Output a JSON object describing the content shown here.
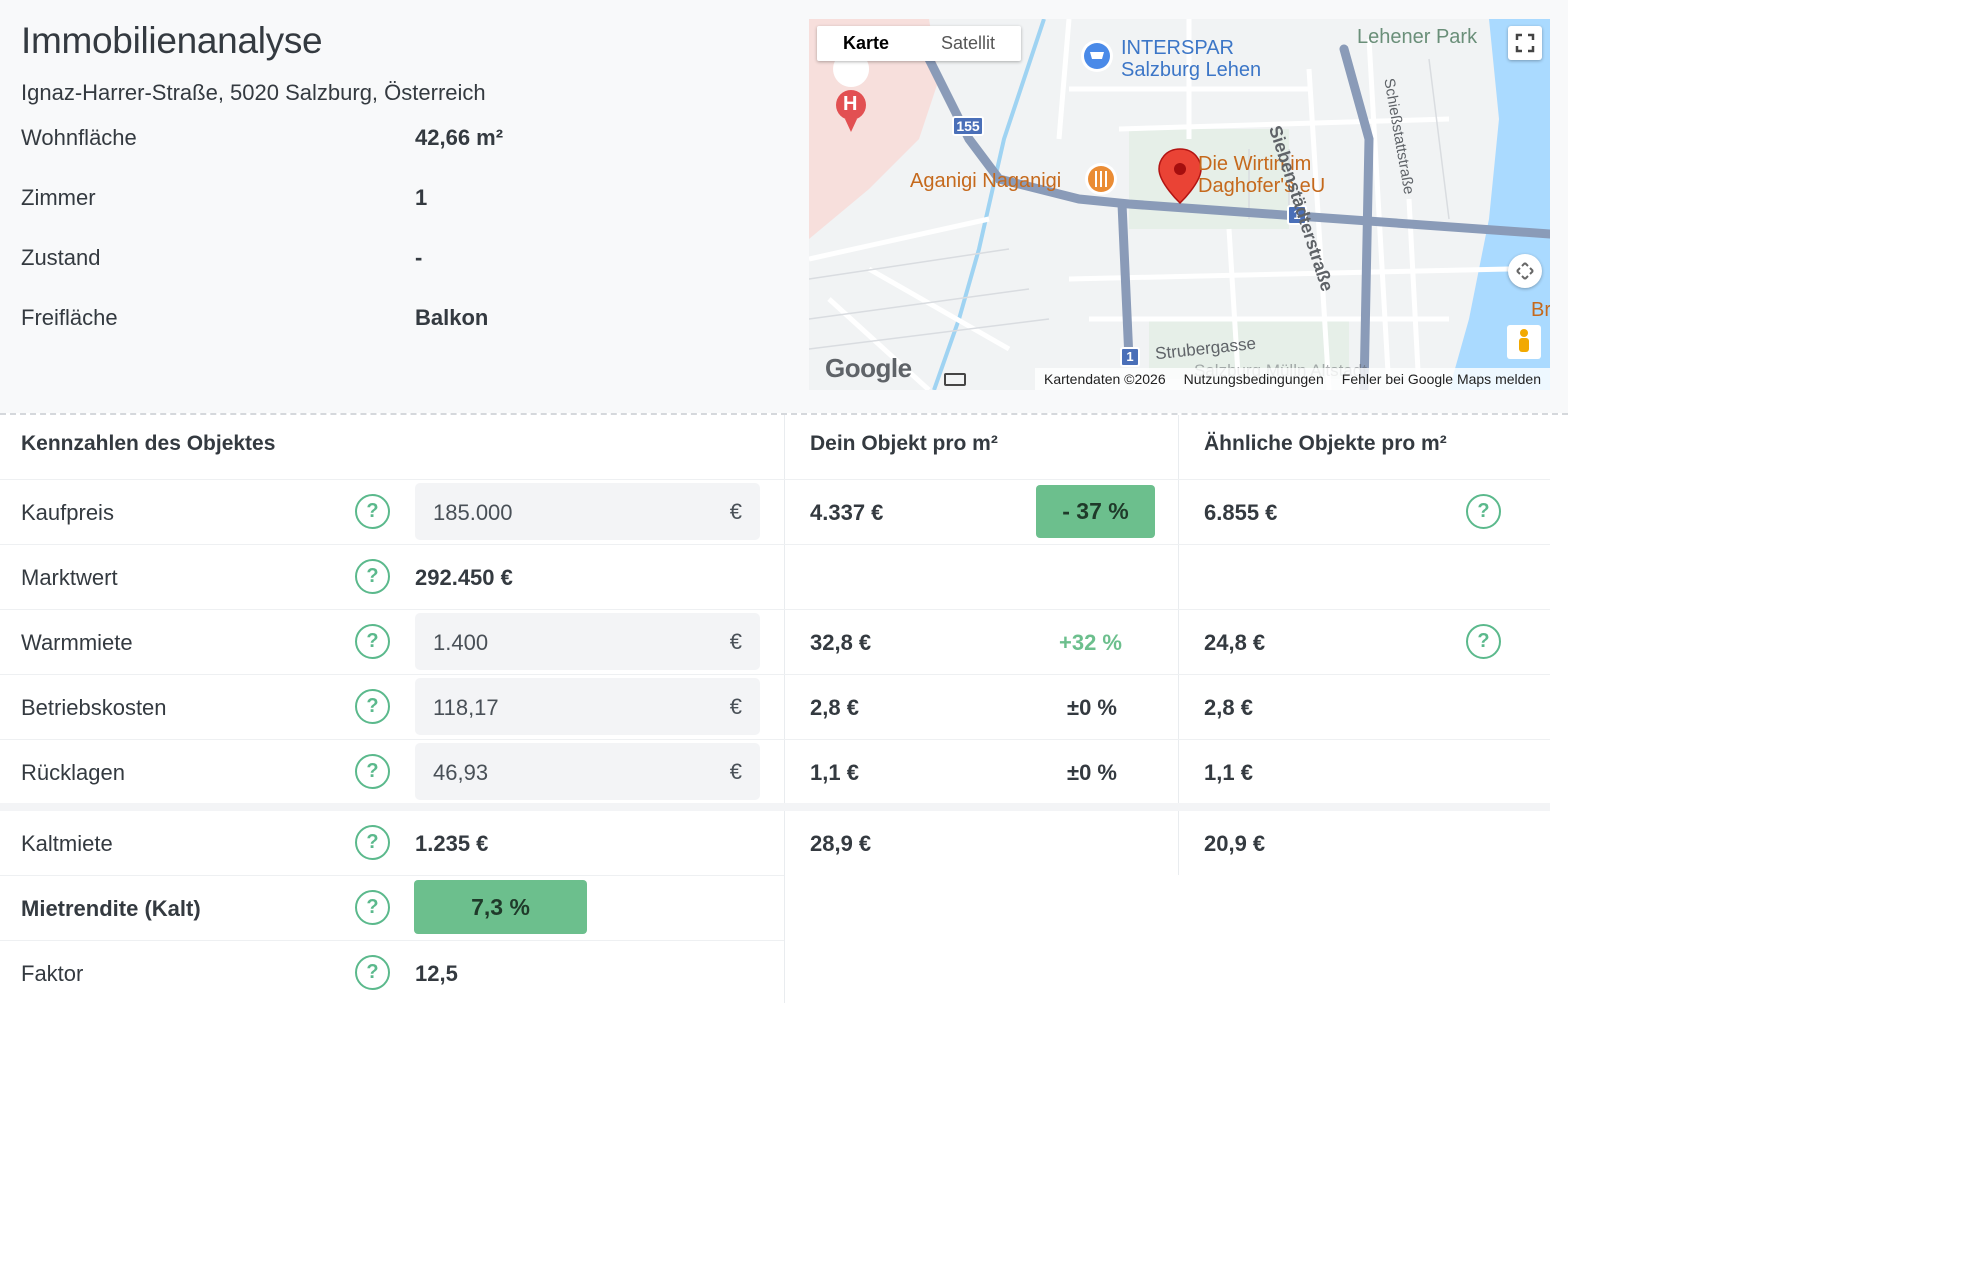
{
  "header": {
    "title": "Immobilienanalyse",
    "address": "Ignaz-Harrer-Straße, 5020 Salzburg, Österreich"
  },
  "properties": [
    {
      "label": "Wohnfläche",
      "value": "42,66 m²"
    },
    {
      "label": "Zimmer",
      "value": "1"
    },
    {
      "label": "Zustand",
      "value": "-"
    },
    {
      "label": "Freifläche",
      "value": "Balkon"
    }
  ],
  "map": {
    "tabs": [
      "Karte",
      "Satellit"
    ],
    "active_tab": "Karte",
    "labels": {
      "interspar": "INTERSPAR",
      "interspar2": "Salzburg Lehen",
      "lehener_park": "Lehener Park",
      "aganigi": "Aganigi Naganigi",
      "wirtin1": "Die Wirtin im",
      "wirtin2": "Daghofer's eU",
      "siebenstaedter": "Siebenstädterstraße",
      "schiessstatt": "Schießstattstraße",
      "strubergasse": "Strubergasse",
      "muelln": "Salzburg Mülln Altstadt",
      "br": "Br",
      "route155": "155",
      "route1a": "1",
      "route1b": "1",
      "hospital": "H"
    },
    "logo": "Google",
    "attribution": {
      "data": "Kartendaten ©2026",
      "terms": "Nutzungsbedingungen",
      "report": "Fehler bei Google Maps melden"
    },
    "colors": {
      "road": "#8a9bb8",
      "water": "#aadaff",
      "park": "#e2efe6",
      "pin": "#ea4335"
    }
  },
  "table": {
    "headers": {
      "col1": "Kennzahlen des Objektes",
      "col2": "Dein Objekt pro m²",
      "col3": "Ähnliche Objekte pro m²"
    },
    "help_glyph": "?",
    "rows": {
      "kaufpreis": {
        "label": "Kaufpreis",
        "input": "185.000",
        "unit": "€",
        "per_m2": "4.337 €",
        "diff": "- 37 %",
        "similar": "6.855 €"
      },
      "marktwert": {
        "label": "Marktwert",
        "value": "292.450 €"
      },
      "warmmiete": {
        "label": "Warmmiete",
        "input": "1.400",
        "unit": "€",
        "per_m2": "32,8 €",
        "diff": "+32 %",
        "similar": "24,8 €"
      },
      "betriebskosten": {
        "label": "Betriebskosten",
        "input": "118,17",
        "unit": "€",
        "per_m2": "2,8 €",
        "diff": "±0 %",
        "similar": "2,8 €"
      },
      "ruecklagen": {
        "label": "Rücklagen",
        "input": "46,93",
        "unit": "€",
        "per_m2": "1,1 €",
        "diff": "±0 %",
        "similar": "1,1 €"
      },
      "kaltmiete": {
        "label": "Kaltmiete",
        "value": "1.235 €",
        "per_m2": "28,9 €",
        "similar": "20,9 €"
      },
      "mietrendite": {
        "label": "Mietrendite (Kalt)",
        "value": "7,3 %"
      },
      "faktor": {
        "label": "Faktor",
        "value": "12,5"
      }
    },
    "colors": {
      "accent_green": "#6cbf8d",
      "help_green": "#5bb98c"
    }
  }
}
